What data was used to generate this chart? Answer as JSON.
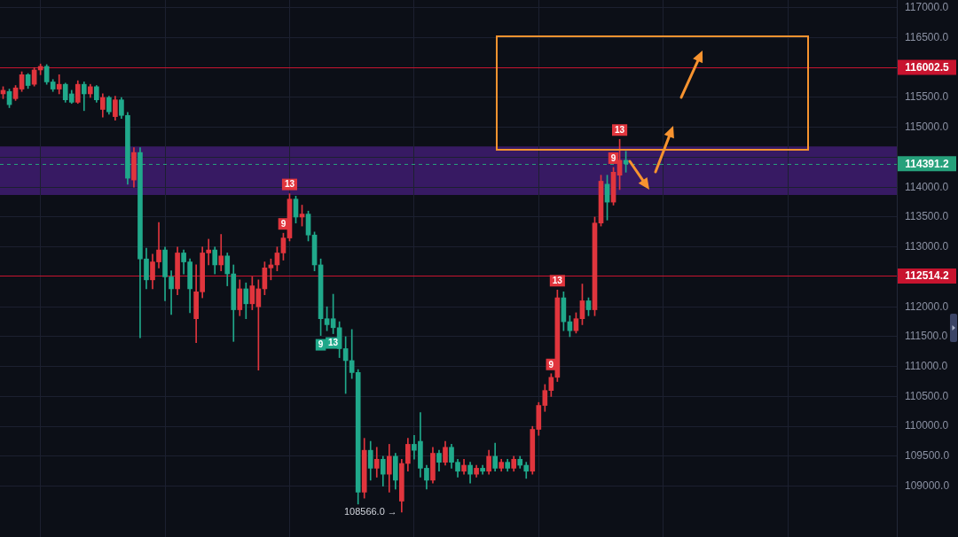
{
  "chart_data": {
    "type": "candlestick",
    "categories": [
      null,
      null,
      null,
      null,
      null,
      null,
      null,
      null,
      null,
      null,
      null,
      null,
      null,
      null,
      null,
      null,
      null,
      null,
      null,
      null,
      null,
      null,
      null,
      null,
      null,
      null,
      null,
      null,
      null,
      null,
      null,
      null,
      null,
      null,
      null,
      null,
      null,
      null,
      null,
      null,
      null,
      null,
      null,
      null,
      null,
      null,
      null,
      null,
      null,
      null,
      null,
      null,
      null,
      null,
      null,
      null,
      null,
      null,
      null,
      null,
      null,
      null,
      null,
      null,
      null,
      null,
      null,
      null,
      null,
      null,
      null,
      null,
      null,
      null,
      null,
      null,
      null,
      null,
      null,
      null,
      null,
      null,
      null,
      null,
      null,
      null,
      null,
      null,
      null,
      null,
      null,
      null,
      null,
      null,
      null,
      null,
      null,
      null,
      null,
      null,
      null,
      null,
      null,
      null,
      null,
      null,
      null,
      null,
      null,
      null,
      null,
      null,
      null,
      null,
      null,
      null,
      null,
      null,
      null,
      null,
      null,
      null,
      null,
      null,
      null,
      null,
      null,
      null,
      null,
      null,
      null,
      null,
      null,
      null,
      null,
      null,
      null,
      null,
      null,
      null,
      null,
      null,
      null,
      null
    ],
    "ohlc": [
      [
        115560,
        115680,
        115480,
        115620
      ],
      [
        115600,
        115640,
        115330,
        115380
      ],
      [
        115480,
        115700,
        115450,
        115660
      ],
      [
        115640,
        115930,
        115600,
        115880
      ],
      [
        115880,
        115900,
        115650,
        115700
      ],
      [
        115720,
        116000,
        115690,
        115960
      ],
      [
        115960,
        116060,
        115880,
        116020
      ],
      [
        116020,
        116050,
        115720,
        115760
      ],
      [
        115760,
        115800,
        115600,
        115640
      ],
      [
        115640,
        115880,
        115560,
        115720
      ],
      [
        115720,
        115740,
        115420,
        115460
      ],
      [
        115560,
        115620,
        115400,
        115420
      ],
      [
        115420,
        115780,
        115400,
        115720
      ],
      [
        115720,
        115760,
        115280,
        115560
      ],
      [
        115560,
        115720,
        115500,
        115680
      ],
      [
        115680,
        115700,
        115420,
        115460
      ],
      [
        115300,
        115560,
        115170,
        115500
      ],
      [
        115500,
        115520,
        115220,
        115260
      ],
      [
        115180,
        115520,
        115120,
        115460
      ],
      [
        115460,
        115500,
        115150,
        115200
      ],
      [
        115200,
        115250,
        114050,
        114150
      ],
      [
        114120,
        114660,
        114000,
        114580
      ],
      [
        114580,
        114660,
        111480,
        112800
      ],
      [
        112800,
        112980,
        112300,
        112450
      ],
      [
        112450,
        112880,
        112300,
        112750
      ],
      [
        112750,
        113410,
        112650,
        112950
      ],
      [
        112950,
        113000,
        112100,
        112500
      ],
      [
        112500,
        112600,
        111870,
        112300
      ],
      [
        112300,
        113000,
        112200,
        112900
      ],
      [
        112900,
        112950,
        112550,
        112750
      ],
      [
        112750,
        112800,
        111900,
        112300
      ],
      [
        111800,
        112700,
        111400,
        112250
      ],
      [
        112250,
        113000,
        112150,
        112900
      ],
      [
        112900,
        113130,
        112700,
        112950
      ],
      [
        112950,
        113000,
        112550,
        112700
      ],
      [
        112700,
        113210,
        112600,
        112850
      ],
      [
        112850,
        112900,
        112350,
        112550
      ],
      [
        112550,
        112700,
        111420,
        111950
      ],
      [
        111950,
        112450,
        111850,
        112300
      ],
      [
        112300,
        112400,
        111800,
        112050
      ],
      [
        112050,
        112500,
        111950,
        112350
      ],
      [
        112000,
        112450,
        110940,
        112300
      ],
      [
        112300,
        112750,
        112200,
        112650
      ],
      [
        112650,
        112800,
        112450,
        112700
      ],
      [
        112700,
        113000,
        112600,
        112900
      ],
      [
        112900,
        113230,
        112780,
        113150
      ],
      [
        113150,
        113890,
        113100,
        113800
      ],
      [
        113800,
        113850,
        113400,
        113500
      ],
      [
        113500,
        113700,
        113350,
        113550
      ],
      [
        113550,
        113600,
        113100,
        113200
      ],
      [
        113200,
        113250,
        112600,
        112700
      ],
      [
        112700,
        112800,
        111520,
        111800
      ],
      [
        111800,
        112000,
        111600,
        111700
      ],
      [
        111800,
        112210,
        111550,
        111650
      ],
      [
        111650,
        111750,
        111150,
        111300
      ],
      [
        111300,
        111500,
        110550,
        111100
      ],
      [
        111100,
        111620,
        110800,
        110900
      ],
      [
        110900,
        110950,
        108700,
        108900
      ],
      [
        108900,
        109800,
        108800,
        109600
      ],
      [
        109600,
        109750,
        109100,
        109300
      ],
      [
        109300,
        109650,
        109150,
        109450
      ],
      [
        109450,
        109500,
        109000,
        109200
      ],
      [
        109200,
        109700,
        108900,
        109500
      ],
      [
        109500,
        109550,
        108950,
        109100
      ],
      [
        108750,
        109450,
        108566,
        109380
      ],
      [
        109380,
        109800,
        109250,
        109700
      ],
      [
        109700,
        109850,
        109450,
        109600
      ],
      [
        109750,
        110230,
        109150,
        109300
      ],
      [
        109300,
        109350,
        108950,
        109100
      ],
      [
        109100,
        109650,
        109050,
        109550
      ],
      [
        109550,
        109600,
        109250,
        109400
      ],
      [
        109400,
        109750,
        109350,
        109650
      ],
      [
        109650,
        109700,
        109300,
        109400
      ],
      [
        109400,
        109450,
        109150,
        109250
      ],
      [
        109250,
        109450,
        109200,
        109350
      ],
      [
        109350,
        109400,
        109050,
        109200
      ],
      [
        109200,
        109350,
        109150,
        109300
      ],
      [
        109300,
        109350,
        109200,
        109250
      ],
      [
        109250,
        109600,
        109200,
        109500
      ],
      [
        109500,
        109720,
        109250,
        109300
      ],
      [
        109300,
        109450,
        109250,
        109400
      ],
      [
        109400,
        109450,
        109250,
        109300
      ],
      [
        109300,
        109500,
        109250,
        109450
      ],
      [
        109450,
        109500,
        109300,
        109350
      ],
      [
        109350,
        109400,
        109130,
        109250
      ],
      [
        109250,
        110000,
        109200,
        109950
      ],
      [
        109950,
        110400,
        109850,
        110350
      ],
      [
        110350,
        110700,
        110250,
        110600
      ],
      [
        110600,
        110880,
        110500,
        110820
      ],
      [
        110820,
        112280,
        110750,
        112150
      ],
      [
        112150,
        112250,
        111600,
        111750
      ],
      [
        111750,
        111850,
        111500,
        111600
      ],
      [
        111600,
        111900,
        111560,
        111800
      ],
      [
        111800,
        112380,
        111700,
        112100
      ],
      [
        112100,
        112150,
        111850,
        111950
      ],
      [
        111950,
        113500,
        111850,
        113400
      ],
      [
        113400,
        114200,
        113350,
        114100
      ],
      [
        114050,
        114200,
        113450,
        113750
      ],
      [
        113750,
        114330,
        113700,
        114250
      ],
      [
        114200,
        114800,
        113960,
        114450
      ],
      [
        114450,
        114600,
        114250,
        114391.2
      ],
      null,
      null,
      null,
      null,
      null,
      null,
      null,
      null,
      null,
      null,
      null,
      null,
      null,
      null,
      null,
      null,
      null,
      null,
      null,
      null,
      null,
      null,
      null,
      null,
      null,
      null,
      null,
      null,
      null,
      null,
      null,
      null,
      null,
      null,
      null,
      null,
      null,
      null,
      null,
      null,
      null,
      null,
      null
    ],
    "colors": [
      "#e0353d",
      "#20a98b",
      "#e0353d",
      "#e0353d",
      "#20a98b",
      "#e0353d",
      "#e0353d",
      "#20a98b",
      "#20a98b",
      "#e0353d",
      "#20a98b",
      "#20a98b",
      "#e0353d",
      "#20a98b",
      "#e0353d",
      "#20a98b",
      "#e0353d",
      "#20a98b",
      "#e0353d",
      "#20a98b",
      "#20a98b",
      "#e0353d",
      "#20a98b",
      "#20a98b",
      "#e0353d",
      "#e0353d",
      "#20a98b",
      "#20a98b",
      "#e0353d",
      "#20a98b",
      "#20a98b",
      "#e0353d",
      "#e0353d",
      "#e0353d",
      "#20a98b",
      "#e0353d",
      "#20a98b",
      "#20a98b",
      "#e0353d",
      "#20a98b",
      "#e0353d",
      "#e0353d",
      "#e0353d",
      "#e0353d",
      "#e0353d",
      "#e0353d",
      "#e0353d",
      "#20a98b",
      "#e0353d",
      "#20a98b",
      "#20a98b",
      "#20a98b",
      "#20a98b",
      "#20a98b",
      "#20a98b",
      "#20a98b",
      "#20a98b",
      "#20a98b",
      "#e0353d",
      "#20a98b",
      "#e0353d",
      "#20a98b",
      "#e0353d",
      "#20a98b",
      "#e0353d",
      "#e0353d",
      "#20a98b",
      "#20a98b",
      "#20a98b",
      "#e0353d",
      "#20a98b",
      "#e0353d",
      "#20a98b",
      "#20a98b",
      "#e0353d",
      "#20a98b",
      "#e0353d",
      "#20a98b",
      "#e0353d",
      "#20a98b",
      "#e0353d",
      "#20a98b",
      "#e0353d",
      "#20a98b",
      "#20a98b",
      "#e0353d",
      "#e0353d",
      "#e0353d",
      "#e0353d",
      "#e0353d",
      "#20a98b",
      "#20a98b",
      "#e0353d",
      "#e0353d",
      "#20a98b",
      "#e0353d",
      "#e0353d",
      "#20a98b",
      "#e0353d",
      "#e0353d",
      "#20a98b",
      null,
      null,
      null,
      null,
      null,
      null,
      null,
      null,
      null,
      null,
      null,
      null,
      null,
      null,
      null,
      null,
      null,
      null,
      null,
      null,
      null,
      null,
      null,
      null,
      null,
      null,
      null,
      null,
      null,
      null,
      null,
      null,
      null,
      null,
      null,
      null,
      null,
      null,
      null,
      null,
      null,
      null,
      null
    ],
    "ylim": [
      108150,
      117130
    ],
    "yticks": [
      {
        "value": 109000,
        "label": "109000.0"
      },
      {
        "value": 109500,
        "label": "109500.0"
      },
      {
        "value": 110000,
        "label": "110000.0"
      },
      {
        "value": 110500,
        "label": "110500.0"
      },
      {
        "value": 111000,
        "label": "111000.0"
      },
      {
        "value": 111500,
        "label": "111500.0"
      },
      {
        "value": 112000,
        "label": "112000.0"
      },
      {
        "value": 113000,
        "label": "113000.0"
      },
      {
        "value": 113500,
        "label": "113500.0"
      },
      {
        "value": 114000,
        "label": "114000.0"
      },
      {
        "value": 114500,
        "label": null
      },
      {
        "value": 115000,
        "label": "115000.0"
      },
      {
        "value": 115500,
        "label": "115500.0"
      },
      {
        "value": 116500,
        "label": "116500.0"
      },
      {
        "value": 117000,
        "label": "117000.0"
      }
    ],
    "grid": true,
    "tick_labels": "y",
    "ref_lines": [
      {
        "axis": "y",
        "value": 116002.5,
        "label": "116002.5",
        "color": "#c8142f"
      },
      {
        "axis": "y",
        "value": 114391.2,
        "label": "114391.2",
        "color": "#26a17b",
        "line_style": "dashed"
      },
      {
        "axis": "y",
        "value": 112514.2,
        "label": "112514.2",
        "color": "#c8142f"
      }
    ],
    "bands": [
      {
        "axis": "y",
        "from": 113870,
        "to": 114680,
        "color": "#371a63"
      }
    ],
    "annotations": [
      {
        "text": "9",
        "y": 113230
      },
      {
        "text": "13",
        "y": 113890
      },
      {
        "text": "9",
        "y": 111520
      },
      {
        "text": "13",
        "y": 111550
      },
      {
        "text": "9",
        "y": 110880
      },
      {
        "text": "13",
        "y": 112280
      },
      {
        "text": "9",
        "y": 114330
      },
      {
        "text": "13",
        "y": 114800
      },
      "108566.0 →"
    ]
  }
}
